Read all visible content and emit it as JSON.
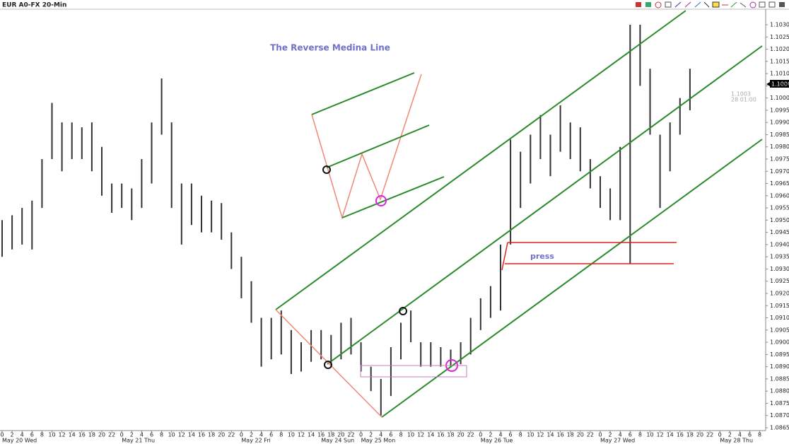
{
  "chart_data": {
    "type": "ohlc",
    "title": "EUR A0-FX 20-Min",
    "annotation": "The Reverse Medina Line",
    "press_label": "press",
    "last_price": "1.1006",
    "cursor": {
      "price": "1.1003",
      "time": "28 01:00"
    },
    "color": "#333333",
    "days": [
      {
        "label": "May 20 Wed",
        "hours": [
          0,
          2,
          4,
          6,
          8,
          10,
          12,
          14,
          16,
          18,
          20,
          22
        ]
      },
      {
        "label": "May 21 Thu",
        "hours": [
          0,
          2,
          4,
          6,
          8,
          10,
          12,
          14,
          16,
          18,
          20,
          22
        ]
      },
      {
        "label": "May 22 Fri",
        "hours": [
          0,
          2,
          4,
          6,
          8,
          10,
          12,
          14
        ]
      },
      {
        "label": "May 24 Sun",
        "hours": [
          16,
          18,
          20,
          22
        ]
      },
      {
        "label": "May 25 Mon",
        "hours": [
          0,
          2,
          4,
          6,
          8,
          10,
          12,
          14,
          16,
          18,
          20,
          22
        ]
      },
      {
        "label": "May 26 Tue",
        "hours": [
          0,
          2,
          4,
          6,
          8,
          10,
          12,
          14,
          16,
          18,
          20,
          22
        ]
      },
      {
        "label": "May 27 Wed",
        "hours": [
          0,
          2,
          4,
          6,
          8,
          10,
          12,
          14,
          16,
          18,
          20,
          22
        ]
      },
      {
        "label": "May 28 Thu",
        "hours": [
          0,
          2,
          4,
          6,
          8
        ]
      }
    ],
    "high": [
      1.095,
      1.0952,
      1.0955,
      1.0958,
      1.0975,
      1.0998,
      1.099,
      1.099,
      1.0988,
      1.099,
      1.098,
      1.0965,
      1.0965,
      1.0963,
      1.0975,
      1.099,
      1.1008,
      1.099,
      1.0965,
      1.0965,
      1.096,
      1.0958,
      1.0957,
      1.0945,
      1.0935,
      1.0925,
      1.091,
      1.091,
      1.0913,
      1.0905,
      1.09,
      1.0905,
      1.0905,
      1.0903,
      1.0908,
      1.091,
      1.09,
      1.089,
      1.0885,
      1.0898,
      1.0908,
      1.0913,
      1.09,
      1.09,
      1.0898,
      1.0897,
      1.09,
      1.091,
      1.0918,
      1.0923,
      1.094,
      1.0983,
      1.0978,
      1.0985,
      1.0993,
      1.0985,
      1.0997,
      1.099,
      1.0988,
      1.0975,
      1.0968,
      1.0963,
      1.098,
      1.103,
      1.103,
      1.1012,
      1.0985,
      1.099,
      1.1,
      1.1012,
      null,
      null,
      null,
      null,
      null,
      null,
      null
    ],
    "low": [
      1.0935,
      1.0938,
      1.094,
      1.0938,
      1.0955,
      1.0975,
      1.097,
      1.0975,
      1.0975,
      1.097,
      1.096,
      1.0953,
      1.0955,
      1.095,
      1.0955,
      1.0965,
      1.0985,
      1.0955,
      1.094,
      1.0948,
      1.0945,
      1.0945,
      1.0942,
      1.093,
      1.0918,
      1.0908,
      1.089,
      1.0893,
      1.0895,
      1.0887,
      1.0888,
      1.0892,
      1.0893,
      1.089,
      1.0893,
      1.0895,
      1.0888,
      1.088,
      1.087,
      1.0878,
      1.0893,
      1.09,
      1.089,
      1.089,
      1.089,
      1.089,
      1.0891,
      1.0895,
      1.0905,
      1.091,
      1.0913,
      1.094,
      1.0955,
      1.0965,
      1.0975,
      1.0968,
      1.0978,
      1.0975,
      1.097,
      1.0963,
      1.0955,
      1.095,
      1.095,
      1.0932,
      1.1005,
      1.0985,
      1.0955,
      1.097,
      1.0985,
      1.0995,
      null,
      null,
      null,
      null,
      null,
      null,
      null
    ],
    "ylim": [
      1.0865,
      1.103
    ],
    "yticks": [
      1.0865,
      {
        "value": 1.087,
        "label": "1.0870"
      },
      1.0875,
      {
        "value": 1.088,
        "label": "1.0880"
      },
      1.0885,
      {
        "value": 1.089,
        "label": "1.0890"
      },
      1.0895,
      {
        "value": 1.09,
        "label": "1.0900"
      },
      1.0905,
      {
        "value": 1.091,
        "label": "1.0910"
      },
      1.0915,
      {
        "value": 1.092,
        "label": "1.0920"
      },
      1.0925,
      {
        "value": 1.093,
        "label": "1.0930"
      },
      1.0935,
      {
        "value": 1.094,
        "label": "1.0940"
      },
      1.0945,
      {
        "value": 1.095,
        "label": "1.0950"
      },
      1.0955,
      {
        "value": 1.096,
        "label": "1.0960"
      },
      1.0965,
      {
        "value": 1.097,
        "label": "1.0970"
      },
      1.0975,
      {
        "value": 1.098,
        "label": "1.0980"
      },
      1.0985,
      {
        "value": 1.099,
        "label": "1.0990"
      },
      1.0995,
      {
        "value": 1.1,
        "label": "1.1000"
      },
      1.1005,
      {
        "value": 1.101,
        "label": "1.1010"
      },
      1.1015,
      {
        "value": 1.102,
        "label": "1.1020"
      },
      1.1025,
      {
        "value": 1.103,
        "label": "1.1030"
      }
    ]
  }
}
